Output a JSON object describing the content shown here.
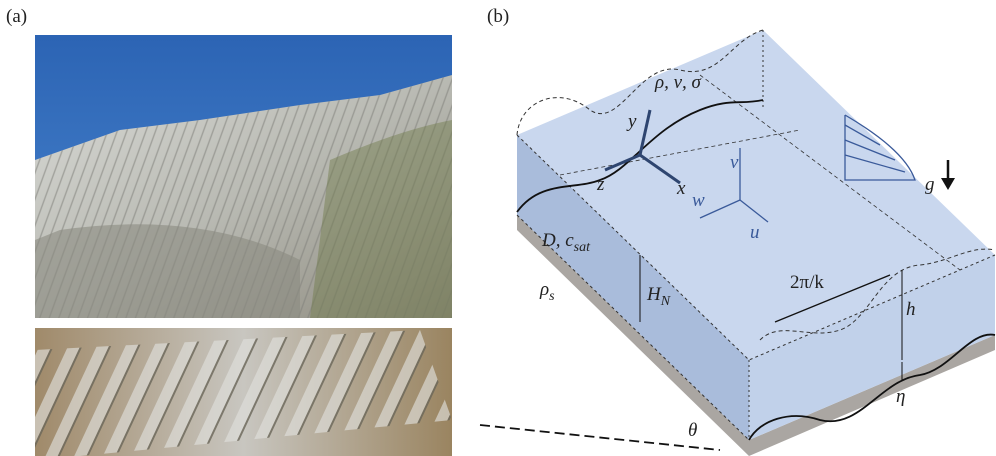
{
  "panel_a": {
    "label": "(a)"
  },
  "panel_b": {
    "label": "(b)",
    "labels": {
      "fluid_props": "ρ, ν, σ",
      "axis_y": "y",
      "axis_z": "z",
      "axis_x": "x",
      "vel_v": "v",
      "vel_w": "w",
      "vel_u": "u",
      "gravity": "g",
      "diffusivity": {
        "main": "D, c",
        "sub": "sat"
      },
      "solid_density": {
        "main": "ρ",
        "sub": "s"
      },
      "depth": {
        "main": "H",
        "sub": "N"
      },
      "wavelength": "2π/k",
      "height": "h",
      "bed": "η",
      "angle": "θ"
    }
  }
}
